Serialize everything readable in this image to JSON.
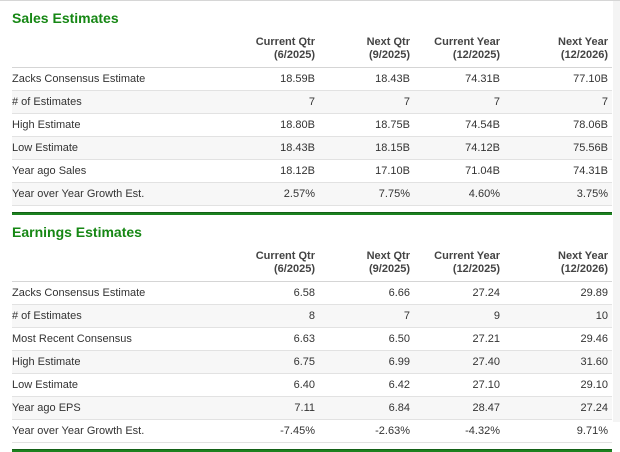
{
  "colors": {
    "accent_green": "#168714",
    "divider_green": "#1c821f",
    "row_stripe": "#f7f7f7",
    "row_border": "#e2e2e2",
    "header_text": "#444444",
    "body_text": "#333333"
  },
  "tables": [
    {
      "title": "Sales Estimates",
      "columns": [
        {
          "label": "Current Qtr",
          "sub": "(6/2025)"
        },
        {
          "label": "Next Qtr",
          "sub": "(9/2025)"
        },
        {
          "label": "Current Year",
          "sub": "(12/2025)"
        },
        {
          "label": "Next Year",
          "sub": "(12/2026)"
        }
      ],
      "rows": [
        {
          "label": "Zacks Consensus Estimate",
          "values": [
            "18.59B",
            "18.43B",
            "74.31B",
            "77.10B"
          ]
        },
        {
          "label": "# of Estimates",
          "values": [
            "7",
            "7",
            "7",
            "7"
          ]
        },
        {
          "label": "High Estimate",
          "values": [
            "18.80B",
            "18.75B",
            "74.54B",
            "78.06B"
          ]
        },
        {
          "label": "Low Estimate",
          "values": [
            "18.43B",
            "18.15B",
            "74.12B",
            "75.56B"
          ]
        },
        {
          "label": "Year ago Sales",
          "values": [
            "18.12B",
            "17.10B",
            "71.04B",
            "74.31B"
          ]
        },
        {
          "label": "Year over Year Growth Est.",
          "values": [
            "2.57%",
            "7.75%",
            "4.60%",
            "3.75%"
          ]
        }
      ]
    },
    {
      "title": "Earnings Estimates",
      "columns": [
        {
          "label": "Current Qtr",
          "sub": "(6/2025)"
        },
        {
          "label": "Next Qtr",
          "sub": "(9/2025)"
        },
        {
          "label": "Current Year",
          "sub": "(12/2025)"
        },
        {
          "label": "Next Year",
          "sub": "(12/2026)"
        }
      ],
      "rows": [
        {
          "label": "Zacks Consensus Estimate",
          "values": [
            "6.58",
            "6.66",
            "27.24",
            "29.89"
          ]
        },
        {
          "label": "# of Estimates",
          "values": [
            "8",
            "7",
            "9",
            "10"
          ]
        },
        {
          "label": "Most Recent Consensus",
          "values": [
            "6.63",
            "6.50",
            "27.21",
            "29.46"
          ]
        },
        {
          "label": "High Estimate",
          "values": [
            "6.75",
            "6.99",
            "27.40",
            "31.60"
          ]
        },
        {
          "label": "Low Estimate",
          "values": [
            "6.40",
            "6.42",
            "27.10",
            "29.10"
          ]
        },
        {
          "label": "Year ago EPS",
          "values": [
            "7.11",
            "6.84",
            "28.47",
            "27.24"
          ]
        },
        {
          "label": "Year over Year Growth Est.",
          "values": [
            "-7.45%",
            "-2.63%",
            "-4.32%",
            "9.71%"
          ]
        }
      ]
    }
  ]
}
